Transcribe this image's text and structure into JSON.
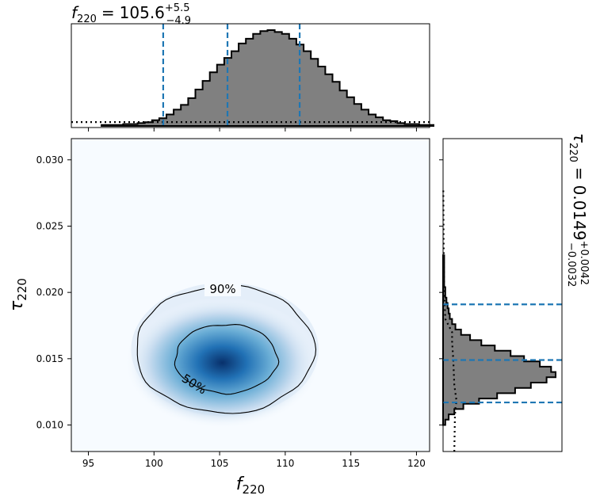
{
  "chart_data": {
    "type": "corner-plot",
    "top_title": {
      "symbol": "f",
      "subscript": "220",
      "equals": "=",
      "median": "105.6",
      "plus": "+5.5",
      "minus": "−4.9"
    },
    "right_title": {
      "symbol": "τ",
      "subscript": "220",
      "equals": "=",
      "median": "0.0149",
      "plus": "+0.0042",
      "minus": "−0.0032"
    },
    "xlabel": {
      "symbol": "f",
      "subscript": "220"
    },
    "ylabel": {
      "symbol": "τ",
      "subscript": "220"
    },
    "xlim": [
      93.7,
      121.0
    ],
    "ylim": [
      0.008,
      0.0316
    ],
    "x_ticks": [
      95,
      100,
      105,
      110,
      115,
      120
    ],
    "x_tick_labels": [
      "95",
      "100",
      "105",
      "110",
      "115",
      "120"
    ],
    "y_ticks": [
      0.01,
      0.015,
      0.02,
      0.025,
      0.03
    ],
    "y_tick_labels": [
      "0.010",
      "0.015",
      "0.020",
      "0.025",
      "0.030"
    ],
    "contour_labels": [
      "90%",
      "50%"
    ],
    "contours": [
      {
        "level": "90%",
        "center": [
          105.4,
          0.0157
        ],
        "rx": 6.8,
        "ry": 0.0048
      },
      {
        "level": "50%",
        "center": [
          105.5,
          0.015
        ],
        "rx": 3.9,
        "ry": 0.0026
      }
    ],
    "density_peak": [
      105.2,
      0.0147
    ],
    "f_histogram": {
      "edges_start": 96.0,
      "bin_width": 0.55,
      "counts": [
        1,
        1,
        1,
        2,
        2,
        3,
        4,
        6,
        8,
        12,
        17,
        22,
        29,
        38,
        47,
        56,
        64,
        71,
        78,
        86,
        91,
        96,
        99,
        100,
        98,
        96,
        91,
        85,
        78,
        70,
        62,
        54,
        46,
        37,
        30,
        23,
        17,
        12,
        9,
        6,
        5,
        3,
        2,
        2,
        1,
        1
      ],
      "quantile_lines": [
        100.7,
        105.6,
        111.1
      ],
      "prior_level": 0.04
    },
    "tau_histogram": {
      "edges_start": 0.01,
      "bin_width": 0.0004,
      "counts": [
        2,
        5,
        10,
        18,
        32,
        48,
        64,
        78,
        92,
        100,
        96,
        86,
        72,
        60,
        46,
        34,
        24,
        16,
        11,
        8,
        6,
        5,
        4,
        3,
        2,
        2,
        1,
        1,
        1,
        1,
        1,
        1
      ],
      "quantile_lines": [
        0.0117,
        0.0149,
        0.0191
      ],
      "prior": [
        [
          0.008,
          0.1
        ],
        [
          0.0105,
          0.105
        ],
        [
          0.0113,
          0.11
        ],
        [
          0.0118,
          0.12
        ],
        [
          0.013,
          0.1
        ],
        [
          0.015,
          0.09
        ],
        [
          0.0163,
          0.08
        ],
        [
          0.017,
          0.08
        ],
        [
          0.0175,
          0.05
        ],
        [
          0.018,
          0.02
        ],
        [
          0.02,
          0.01
        ],
        [
          0.024,
          0.005
        ],
        [
          0.0277,
          0.002
        ]
      ]
    },
    "colors": {
      "hist_fill": "#808080",
      "quantile": "#1f77b4",
      "density": "#08519c"
    }
  }
}
